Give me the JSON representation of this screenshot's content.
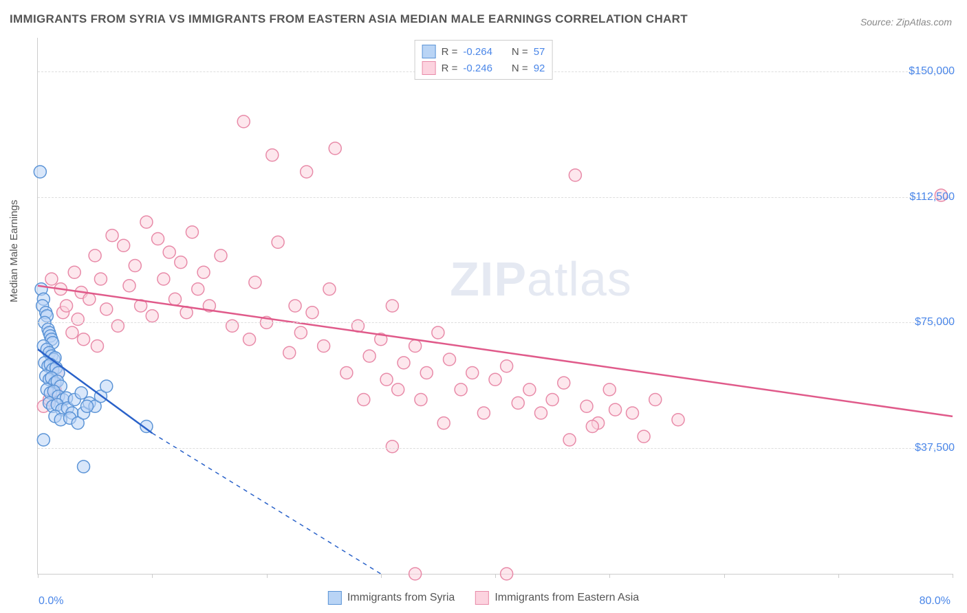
{
  "title": "IMMIGRANTS FROM SYRIA VS IMMIGRANTS FROM EASTERN ASIA MEDIAN MALE EARNINGS CORRELATION CHART",
  "source": "Source: ZipAtlas.com",
  "ylabel": "Median Male Earnings",
  "watermark_a": "ZIP",
  "watermark_b": "atlas",
  "chart": {
    "type": "scatter-with-regression",
    "background_color": "#ffffff",
    "grid_color": "#dddddd",
    "axis_color": "#cccccc",
    "x": {
      "min": 0,
      "max": 80,
      "unit": "%",
      "tick_labels": [
        "0.0%",
        "80.0%"
      ],
      "tick_positions_pct": [
        0,
        10,
        20,
        30,
        40,
        50,
        60,
        70,
        80
      ]
    },
    "y": {
      "min": 0,
      "max": 160000,
      "unit": "$",
      "gridlines": [
        37500,
        75000,
        112500,
        150000
      ],
      "tick_labels": [
        "$37,500",
        "$75,000",
        "$112,500",
        "$150,000"
      ]
    },
    "series": [
      {
        "name": "Immigrants from Syria",
        "color_fill": "#b9d4f5",
        "color_stroke": "#5a93d6",
        "line_color": "#2a62c9",
        "marker_radius": 9,
        "marker_opacity": 0.55,
        "R": -0.264,
        "N": 57,
        "trend": {
          "x1": 0,
          "y1": 67000,
          "x2_solid": 10,
          "y2_solid": 42000,
          "x2_dash": 30,
          "y2_dash": 0
        },
        "points": [
          [
            0.2,
            120000
          ],
          [
            0.3,
            85000
          ],
          [
            0.5,
            82000
          ],
          [
            0.4,
            80000
          ],
          [
            0.7,
            78000
          ],
          [
            0.8,
            77000
          ],
          [
            0.6,
            75000
          ],
          [
            0.9,
            73000
          ],
          [
            1.0,
            72000
          ],
          [
            1.1,
            71000
          ],
          [
            1.2,
            70000
          ],
          [
            1.3,
            69000
          ],
          [
            0.5,
            68000
          ],
          [
            0.8,
            67000
          ],
          [
            1.0,
            66000
          ],
          [
            1.2,
            65000
          ],
          [
            1.4,
            64000
          ],
          [
            1.5,
            64500
          ],
          [
            0.6,
            63000
          ],
          [
            0.9,
            62000
          ],
          [
            1.1,
            62500
          ],
          [
            1.3,
            61000
          ],
          [
            1.6,
            61500
          ],
          [
            1.8,
            60000
          ],
          [
            0.7,
            59000
          ],
          [
            1.0,
            58000
          ],
          [
            1.2,
            58500
          ],
          [
            1.5,
            57000
          ],
          [
            1.7,
            57500
          ],
          [
            2.0,
            56000
          ],
          [
            0.8,
            55000
          ],
          [
            1.1,
            54000
          ],
          [
            1.4,
            54500
          ],
          [
            1.8,
            53000
          ],
          [
            2.2,
            52000
          ],
          [
            2.5,
            52500
          ],
          [
            1.0,
            51000
          ],
          [
            1.3,
            50000
          ],
          [
            1.7,
            50500
          ],
          [
            2.1,
            49000
          ],
          [
            2.6,
            49500
          ],
          [
            3.0,
            48000
          ],
          [
            1.5,
            47000
          ],
          [
            2.0,
            46000
          ],
          [
            2.8,
            46500
          ],
          [
            3.5,
            45000
          ],
          [
            4.0,
            48000
          ],
          [
            4.5,
            51000
          ],
          [
            5.0,
            50000
          ],
          [
            5.5,
            53000
          ],
          [
            6.0,
            56000
          ],
          [
            3.2,
            52000
          ],
          [
            3.8,
            54000
          ],
          [
            4.3,
            50000
          ],
          [
            0.5,
            40000
          ],
          [
            4.0,
            32000
          ],
          [
            9.5,
            44000
          ]
        ]
      },
      {
        "name": "Immigrants from Eastern Asia",
        "color_fill": "#fcd3df",
        "color_stroke": "#e88aa8",
        "line_color": "#e05a8a",
        "marker_radius": 9,
        "marker_opacity": 0.55,
        "R": -0.246,
        "N": 92,
        "trend": {
          "x1": 0,
          "y1": 86000,
          "x2_solid": 80,
          "y2_solid": 47000
        },
        "points": [
          [
            0.5,
            50000
          ],
          [
            1.0,
            52000
          ],
          [
            1.2,
            88000
          ],
          [
            1.5,
            55000
          ],
          [
            1.8,
            60000
          ],
          [
            2.0,
            85000
          ],
          [
            2.2,
            78000
          ],
          [
            2.5,
            80000
          ],
          [
            3.0,
            72000
          ],
          [
            3.2,
            90000
          ],
          [
            3.5,
            76000
          ],
          [
            3.8,
            84000
          ],
          [
            4.0,
            70000
          ],
          [
            4.5,
            82000
          ],
          [
            5.0,
            95000
          ],
          [
            5.2,
            68000
          ],
          [
            5.5,
            88000
          ],
          [
            6.0,
            79000
          ],
          [
            6.5,
            101000
          ],
          [
            7.0,
            74000
          ],
          [
            7.5,
            98000
          ],
          [
            8.0,
            86000
          ],
          [
            8.5,
            92000
          ],
          [
            9.0,
            80000
          ],
          [
            9.5,
            105000
          ],
          [
            10.0,
            77000
          ],
          [
            10.5,
            100000
          ],
          [
            11.0,
            88000
          ],
          [
            11.5,
            96000
          ],
          [
            12.0,
            82000
          ],
          [
            12.5,
            93000
          ],
          [
            13.0,
            78000
          ],
          [
            13.5,
            102000
          ],
          [
            14.0,
            85000
          ],
          [
            14.5,
            90000
          ],
          [
            15.0,
            80000
          ],
          [
            16.0,
            95000
          ],
          [
            17.0,
            74000
          ],
          [
            18.0,
            135000
          ],
          [
            18.5,
            70000
          ],
          [
            19.0,
            87000
          ],
          [
            20.0,
            75000
          ],
          [
            20.5,
            125000
          ],
          [
            21.0,
            99000
          ],
          [
            22.0,
            66000
          ],
          [
            22.5,
            80000
          ],
          [
            23.0,
            72000
          ],
          [
            23.5,
            120000
          ],
          [
            24.0,
            78000
          ],
          [
            25.0,
            68000
          ],
          [
            25.5,
            85000
          ],
          [
            26.0,
            127000
          ],
          [
            27.0,
            60000
          ],
          [
            28.0,
            74000
          ],
          [
            29.0,
            65000
          ],
          [
            30.0,
            70000
          ],
          [
            30.5,
            58000
          ],
          [
            31.0,
            80000
          ],
          [
            31.5,
            55000
          ],
          [
            32.0,
            63000
          ],
          [
            33.0,
            68000
          ],
          [
            33.5,
            52000
          ],
          [
            34.0,
            60000
          ],
          [
            35.0,
            72000
          ],
          [
            35.5,
            45000
          ],
          [
            36.0,
            64000
          ],
          [
            37.0,
            55000
          ],
          [
            38.0,
            60000
          ],
          [
            39.0,
            48000
          ],
          [
            40.0,
            58000
          ],
          [
            41.0,
            62000
          ],
          [
            42.0,
            51000
          ],
          [
            43.0,
            55000
          ],
          [
            44.0,
            48000
          ],
          [
            45.0,
            52000
          ],
          [
            46.0,
            57000
          ],
          [
            46.5,
            40000
          ],
          [
            47.0,
            119000
          ],
          [
            48.0,
            50000
          ],
          [
            49.0,
            45000
          ],
          [
            50.0,
            55000
          ],
          [
            50.5,
            49000
          ],
          [
            52.0,
            48000
          ],
          [
            53.0,
            41000
          ],
          [
            54.0,
            52000
          ],
          [
            56.0,
            46000
          ],
          [
            48.5,
            44000
          ],
          [
            33.0,
            0
          ],
          [
            41.0,
            0
          ],
          [
            79.0,
            113000
          ],
          [
            28.5,
            52000
          ],
          [
            31.0,
            38000
          ]
        ]
      }
    ]
  },
  "legend_top": [
    {
      "swatch_fill": "#b9d4f5",
      "swatch_stroke": "#5a93d6",
      "R_label": "R = ",
      "R": "-0.264",
      "N_label": "N = ",
      "N": "57"
    },
    {
      "swatch_fill": "#fcd3df",
      "swatch_stroke": "#e88aa8",
      "R_label": "R = ",
      "R": "-0.246",
      "N_label": "N = ",
      "N": "92"
    }
  ],
  "legend_bottom": [
    {
      "swatch_fill": "#b9d4f5",
      "swatch_stroke": "#5a93d6",
      "label": "Immigrants from Syria"
    },
    {
      "swatch_fill": "#fcd3df",
      "swatch_stroke": "#e88aa8",
      "label": "Immigrants from Eastern Asia"
    }
  ]
}
